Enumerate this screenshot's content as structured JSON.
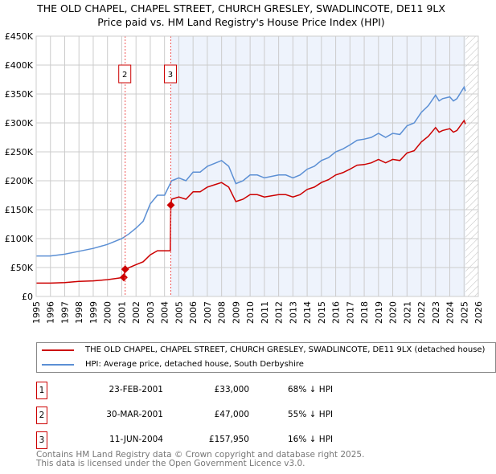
{
  "chart_data": {
    "type": "line",
    "title": "THE OLD CHAPEL, CHAPEL STREET, CHURCH GRESLEY, SWADLINCOTE, DE11 9LX",
    "subtitle": "Price paid vs. HM Land Registry's House Price Index (HPI)",
    "xlim": [
      1995,
      2026
    ],
    "ylim": [
      0,
      450000
    ],
    "x_ticks": [
      "1995",
      "1996",
      "1997",
      "1998",
      "1999",
      "2000",
      "2001",
      "2002",
      "2003",
      "2004",
      "2005",
      "2006",
      "2007",
      "2008",
      "2009",
      "2010",
      "2011",
      "2012",
      "2013",
      "2014",
      "2015",
      "2016",
      "2017",
      "2018",
      "2019",
      "2020",
      "2021",
      "2022",
      "2023",
      "2024",
      "2025",
      "2026"
    ],
    "y_ticks": [
      {
        "v": 0,
        "label": "£0"
      },
      {
        "v": 50000,
        "label": "£50K"
      },
      {
        "v": 100000,
        "label": "£100K"
      },
      {
        "v": 150000,
        "label": "£150K"
      },
      {
        "v": 200000,
        "label": "£200K"
      },
      {
        "v": 250000,
        "label": "£250K"
      },
      {
        "v": 300000,
        "label": "£300K"
      },
      {
        "v": 350000,
        "label": "£350K"
      },
      {
        "v": 400000,
        "label": "£400K"
      },
      {
        "v": 450000,
        "label": "£450K"
      }
    ],
    "grid": true,
    "shaded_from": 2004.44,
    "forecast_hatch_from": 2025.1,
    "series": [
      {
        "name": "THE OLD CHAPEL, CHAPEL STREET, CHURCH GRESLEY, SWADLINCOTE, DE11 9LX (detached house)",
        "color": "#cc0000",
        "x": [
          1995,
          1996,
          1997,
          1998,
          1999,
          2000,
          2001.14,
          2001.15,
          2001.24,
          2002,
          2002.5,
          2003,
          2003.5,
          2004.4,
          2004.44,
          2004.5,
          2005,
          2005.5,
          2006,
          2006.5,
          2007,
          2007.5,
          2008,
          2008.5,
          2009,
          2009.5,
          2010,
          2010.5,
          2011,
          2012,
          2012.5,
          2013,
          2013.5,
          2014,
          2014.5,
          2015,
          2015.5,
          2016,
          2016.5,
          2017,
          2017.5,
          2018,
          2018.5,
          2019,
          2019.5,
          2020,
          2020.5,
          2021,
          2021.5,
          2022,
          2022.5,
          2023,
          2023.25,
          2023.5,
          2024,
          2024.25,
          2024.5,
          2025,
          2025.1
        ],
        "values": [
          23,
          23,
          24,
          26,
          27,
          29,
          33,
          33,
          47,
          55,
          60,
          72,
          79,
          79,
          157.95,
          168,
          172,
          168,
          181,
          181,
          189,
          193,
          197,
          189,
          164,
          168,
          176,
          176,
          172,
          176,
          176,
          172,
          176,
          185,
          189,
          197,
          202,
          210,
          214,
          220,
          227,
          228,
          231,
          237,
          231,
          237,
          235,
          248,
          252,
          267,
          277,
          292,
          284,
          287,
          290,
          284,
          287,
          304,
          298
        ]
      },
      {
        "name": "HPI: Average price, detached house, South Derbyshire",
        "color": "#5b8fd4",
        "x": [
          1995,
          1996,
          1997,
          1998,
          1999,
          2000,
          2001,
          2001.5,
          2002,
          2002.5,
          2003,
          2003.5,
          2004,
          2004.5,
          2005,
          2005.5,
          2006,
          2006.5,
          2007,
          2007.5,
          2008,
          2008.5,
          2009,
          2009.5,
          2010,
          2010.5,
          2011,
          2012,
          2012.5,
          2013,
          2013.5,
          2014,
          2014.5,
          2015,
          2015.5,
          2016,
          2016.5,
          2017,
          2017.5,
          2018,
          2018.5,
          2019,
          2019.5,
          2020,
          2020.5,
          2021,
          2021.5,
          2022,
          2022.5,
          2023,
          2023.25,
          2023.5,
          2024,
          2024.25,
          2024.5,
          2025,
          2025.1
        ],
        "values": [
          70,
          70,
          73,
          78,
          83,
          90,
          100,
          108,
          118,
          130,
          160,
          175,
          175,
          200,
          205,
          200,
          215,
          215,
          225,
          230,
          235,
          225,
          195,
          200,
          210,
          210,
          205,
          210,
          210,
          205,
          210,
          220,
          225,
          235,
          240,
          250,
          255,
          262,
          270,
          272,
          275,
          282,
          275,
          282,
          280,
          295,
          300,
          318,
          330,
          348,
          338,
          342,
          345,
          338,
          342,
          362,
          355
        ]
      }
    ],
    "value_unit": "thousand GBP",
    "sales": [
      {
        "id": "1",
        "x": 2001.14,
        "value": 33,
        "show_label": false
      },
      {
        "id": "2",
        "x": 2001.24,
        "value": 47,
        "show_label": true
      },
      {
        "id": "3",
        "x": 2004.44,
        "value": 157.95,
        "show_label": true
      }
    ]
  },
  "header": {
    "title": "THE OLD CHAPEL, CHAPEL STREET, CHURCH GRESLEY, SWADLINCOTE, DE11 9LX",
    "subtitle": "Price paid vs. HM Land Registry's House Price Index (HPI)"
  },
  "legend": {
    "property": "THE OLD CHAPEL, CHAPEL STREET, CHURCH GRESLEY, SWADLINCOTE, DE11 9LX (detached house)",
    "hpi": "HPI: Average price, detached house, South Derbyshire"
  },
  "transactions": [
    {
      "num": "1",
      "date": "23-FEB-2001",
      "price": "£33,000",
      "pct": "68% ↓ HPI"
    },
    {
      "num": "2",
      "date": "30-MAR-2001",
      "price": "£47,000",
      "pct": "55% ↓ HPI"
    },
    {
      "num": "3",
      "date": "11-JUN-2004",
      "price": "£157,950",
      "pct": "16% ↓ HPI"
    }
  ],
  "footer": {
    "line1": "Contains HM Land Registry data © Crown copyright and database right 2025.",
    "line2": "This data is licensed under the Open Government Licence v3.0."
  }
}
